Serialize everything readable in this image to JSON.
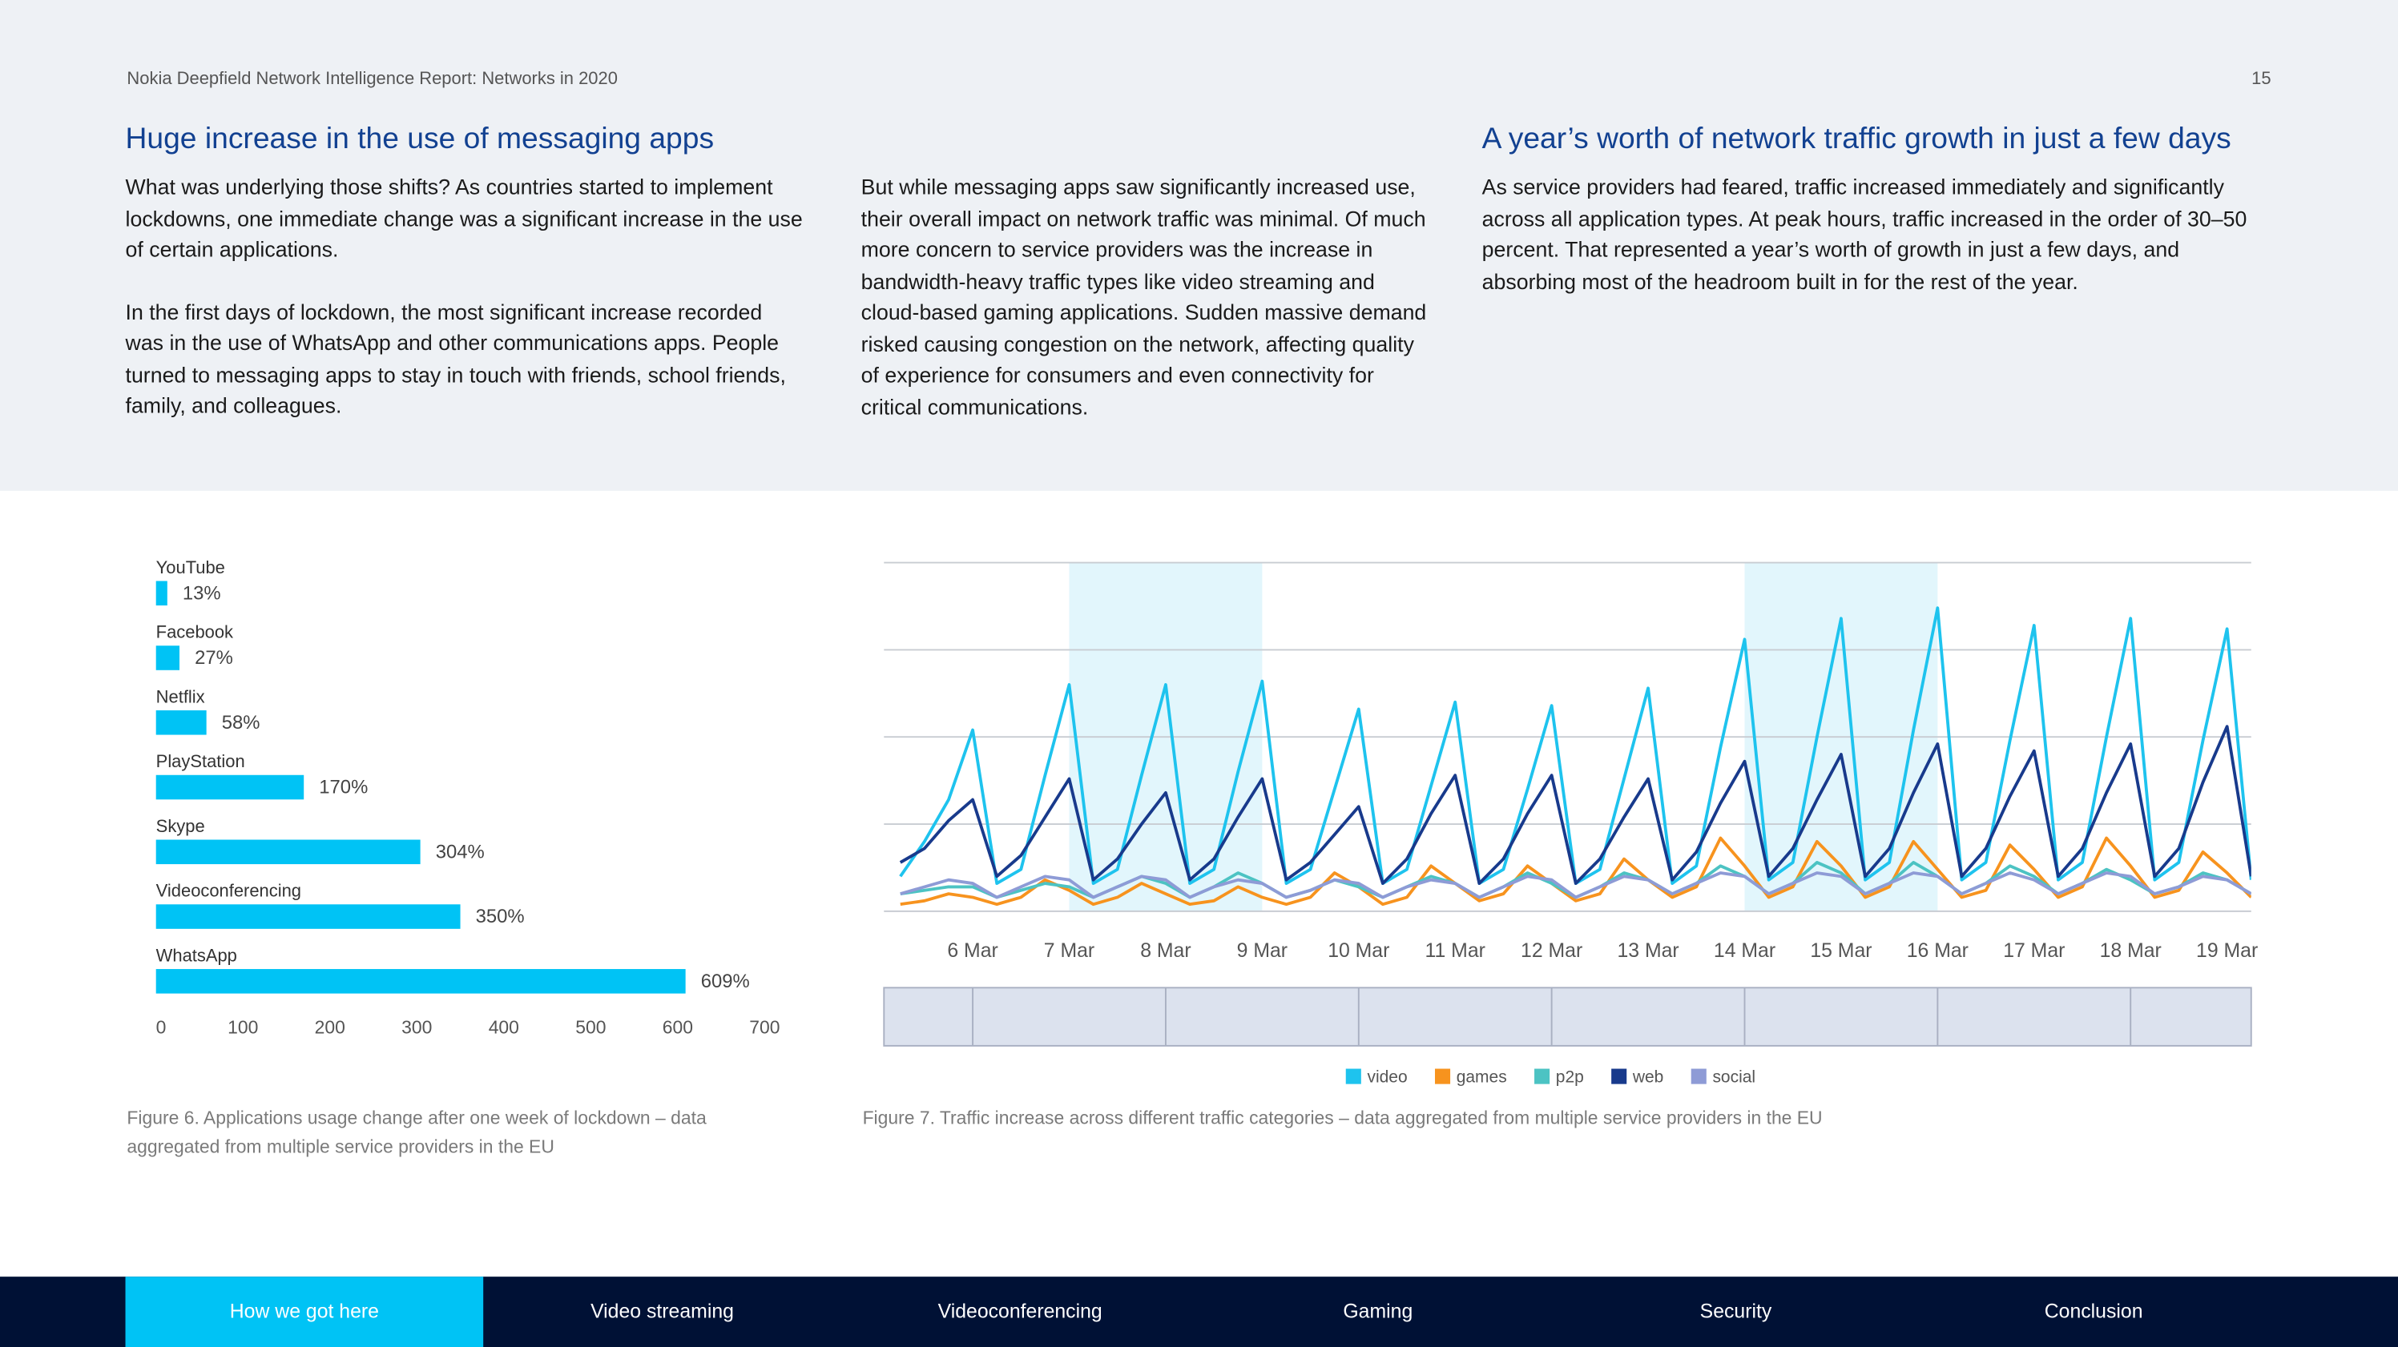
{
  "header": {
    "title": "Nokia Deepfield Network Intelligence Report: Networks in 2020",
    "page_number": "15"
  },
  "columns": [
    {
      "heading": "Huge increase in the use of messaging apps",
      "paragraphs": [
        "What was underlying those shifts? As countries started to implement lockdowns, one immediate change was a significant increase in the use of certain applications.",
        "In the first days of lockdown, the most significant increase recorded was in the use of WhatsApp and other communications apps. People turned to messaging apps to stay in touch with friends, school friends, family, and colleagues."
      ]
    },
    {
      "paragraphs": [
        "But while messaging apps saw significantly increased use, their overall impact on network traffic was minimal. Of much more concern to service providers was the increase in bandwidth-heavy traffic types like video streaming and cloud-based gaming applications. Sudden massive demand risked causing congestion on the network, affecting quality of experience for consumers and even connectivity for critical communications."
      ]
    },
    {
      "heading": "A year’s worth of network traffic growth in just a few days",
      "paragraphs": [
        "As service providers had feared, traffic increased immediately and significantly across all application types. At peak hours, traffic increased in the order of 30–50 percent. That represented a year’s worth of growth in just a few days, and absorbing most of the headroom built in for the rest of the year."
      ]
    }
  ],
  "chart_data": [
    {
      "type": "hbar",
      "caption": "Figure 6. Applications usage change after one week of lockdown – data aggregated from multiple service providers in the EU",
      "categories": [
        "YouTube",
        "Facebook",
        "Netflix",
        "PlayStation",
        "Skype",
        "Videoconferencing",
        "WhatsApp"
      ],
      "values": [
        13,
        27,
        58,
        170,
        304,
        350,
        609
      ],
      "value_labels": [
        "13%",
        "27%",
        "58%",
        "170%",
        "304%",
        "350%",
        "609%"
      ],
      "color": "#00c3f5",
      "xlim": [
        0,
        700
      ],
      "xticks": [
        0,
        100,
        200,
        300,
        400,
        500,
        600,
        700
      ]
    },
    {
      "type": "line",
      "caption": "Figure 7. Traffic increase across different traffic categories – data aggregated from multiple service providers in the EU",
      "x": [
        5.25,
        5.5,
        5.75,
        6,
        6.25,
        6.5,
        6.75,
        7,
        7.25,
        7.5,
        7.75,
        8,
        8.25,
        8.5,
        8.75,
        9,
        9.25,
        9.5,
        9.75,
        10,
        10.25,
        10.5,
        10.75,
        11,
        11.25,
        11.5,
        11.75,
        12,
        12.25,
        12.5,
        12.75,
        13,
        13.25,
        13.5,
        13.75,
        14,
        14.25,
        14.5,
        14.75,
        15,
        15.25,
        15.5,
        15.75,
        16,
        16.25,
        16.5,
        16.75,
        17,
        17.25,
        17.5,
        17.75,
        18,
        18.25,
        18.5,
        18.75,
        19,
        19.25
      ],
      "xlim": [
        5.08,
        19.25
      ],
      "xticks": [
        {
          "value": 6,
          "label": "6 Mar"
        },
        {
          "value": 7,
          "label": "7 Mar"
        },
        {
          "value": 8,
          "label": "8 Mar"
        },
        {
          "value": 9,
          "label": "9 Mar"
        },
        {
          "value": 10,
          "label": "10 Mar"
        },
        {
          "value": 11,
          "label": "11 Mar"
        },
        {
          "value": 12,
          "label": "12 Mar"
        },
        {
          "value": 13,
          "label": "13 Mar"
        },
        {
          "value": 14,
          "label": "14 Mar"
        },
        {
          "value": 15,
          "label": "15 Mar"
        },
        {
          "value": 16,
          "label": "16 Mar"
        },
        {
          "value": 17,
          "label": "17 Mar"
        },
        {
          "value": 18,
          "label": "18 Mar"
        },
        {
          "value": 19,
          "label": "19 Mar"
        }
      ],
      "ylim": [
        0,
        100
      ],
      "yticks": [
        0,
        25,
        50,
        75,
        100
      ],
      "grid": true,
      "highlights": [
        [
          7,
          9
        ],
        [
          14,
          16
        ]
      ],
      "series": [
        {
          "name": "video",
          "color": "#1ec3ee",
          "values": [
            10,
            20,
            32,
            52,
            8,
            12,
            39,
            65,
            8,
            12,
            39,
            65,
            8,
            12,
            40,
            66,
            8,
            12,
            35,
            58,
            8,
            12,
            36,
            60,
            8,
            12,
            35,
            59,
            8,
            12,
            38,
            64,
            8,
            13,
            47,
            78,
            9,
            14,
            50,
            84,
            9,
            14,
            52,
            87,
            9,
            14,
            49,
            82,
            9,
            14,
            50,
            84,
            9,
            14,
            49,
            81,
            9
          ]
        },
        {
          "name": "games",
          "color": "#f7931e",
          "values": [
            2,
            3,
            5,
            4,
            2,
            4,
            9,
            6,
            2,
            4,
            8,
            5,
            2,
            3,
            7,
            4,
            2,
            4,
            11,
            7,
            2,
            4,
            13,
            8,
            3,
            5,
            13,
            8,
            3,
            5,
            15,
            9,
            4,
            7,
            21,
            13,
            4,
            7,
            20,
            13,
            4,
            7,
            20,
            12,
            4,
            6,
            19,
            12,
            4,
            7,
            21,
            13,
            4,
            6,
            17,
            11,
            4
          ]
        },
        {
          "name": "p2p",
          "color": "#4cc3c3",
          "values": [
            5,
            6,
            7,
            7,
            4,
            6,
            8,
            7,
            4,
            7,
            10,
            8,
            4,
            7,
            11,
            8,
            4,
            6,
            9,
            7,
            4,
            7,
            10,
            8,
            4,
            7,
            11,
            8,
            4,
            7,
            11,
            9,
            5,
            8,
            13,
            10,
            5,
            8,
            14,
            11,
            5,
            8,
            14,
            10,
            5,
            8,
            13,
            10,
            5,
            8,
            12,
            9,
            5,
            7,
            11,
            9,
            5
          ]
        },
        {
          "name": "web",
          "color": "#183a8c",
          "values": [
            14,
            18,
            26,
            32,
            10,
            16,
            27,
            38,
            9,
            15,
            25,
            34,
            9,
            15,
            27,
            38,
            9,
            14,
            22,
            30,
            8,
            15,
            28,
            39,
            8,
            15,
            28,
            39,
            8,
            15,
            27,
            38,
            9,
            17,
            31,
            43,
            10,
            18,
            32,
            45,
            10,
            18,
            34,
            48,
            10,
            18,
            33,
            46,
            10,
            18,
            34,
            48,
            10,
            18,
            37,
            53,
            10
          ]
        },
        {
          "name": "social",
          "color": "#8e9bd6",
          "values": [
            5,
            7,
            9,
            8,
            4,
            7,
            10,
            9,
            4,
            7,
            10,
            9,
            4,
            7,
            9,
            8,
            4,
            6,
            9,
            8,
            4,
            7,
            9,
            8,
            4,
            7,
            10,
            9,
            4,
            7,
            10,
            9,
            5,
            8,
            11,
            10,
            5,
            8,
            11,
            10,
            5,
            8,
            11,
            10,
            5,
            8,
            11,
            9,
            5,
            8,
            11,
            10,
            5,
            7,
            10,
            9,
            5
          ]
        }
      ]
    }
  ],
  "nav": {
    "items": [
      "How we got here",
      "Video streaming",
      "Videoconferencing",
      "Gaming",
      "Security",
      "Conclusion"
    ],
    "active": 0
  }
}
